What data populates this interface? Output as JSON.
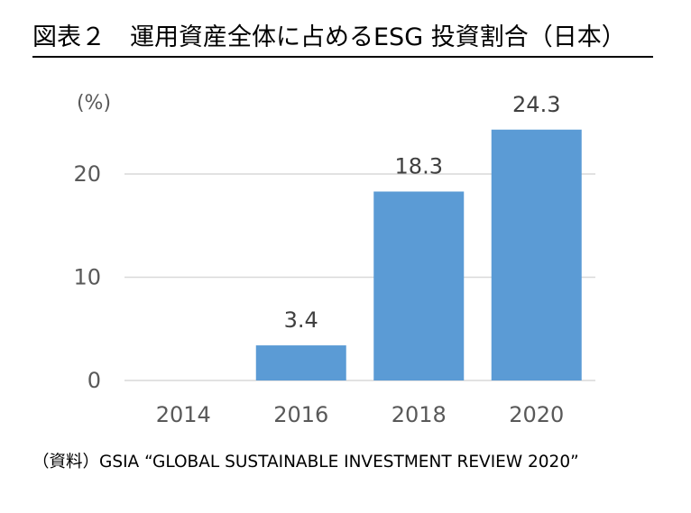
{
  "title": "図表２　運用資産全体に占めるESG 投資割合（日本）",
  "source": "（資料）GSIA “GLOBAL SUSTAINABLE  INVESTMENT REVIEW 2020”",
  "chart_data": {
    "type": "bar",
    "categories": [
      "2014",
      "2016",
      "2018",
      "2020"
    ],
    "values": [
      0,
      3.4,
      18.3,
      24.3
    ],
    "data_labels": [
      "",
      "3.4",
      "18.3",
      "24.3"
    ],
    "unit_label": "(%)",
    "y_ticks": [
      "0",
      "10",
      "20"
    ],
    "ylim": [
      0,
      25
    ],
    "grid": true,
    "legend": "none",
    "bar_color": "#5b9bd5",
    "grid_color": "#d9d9d9"
  }
}
